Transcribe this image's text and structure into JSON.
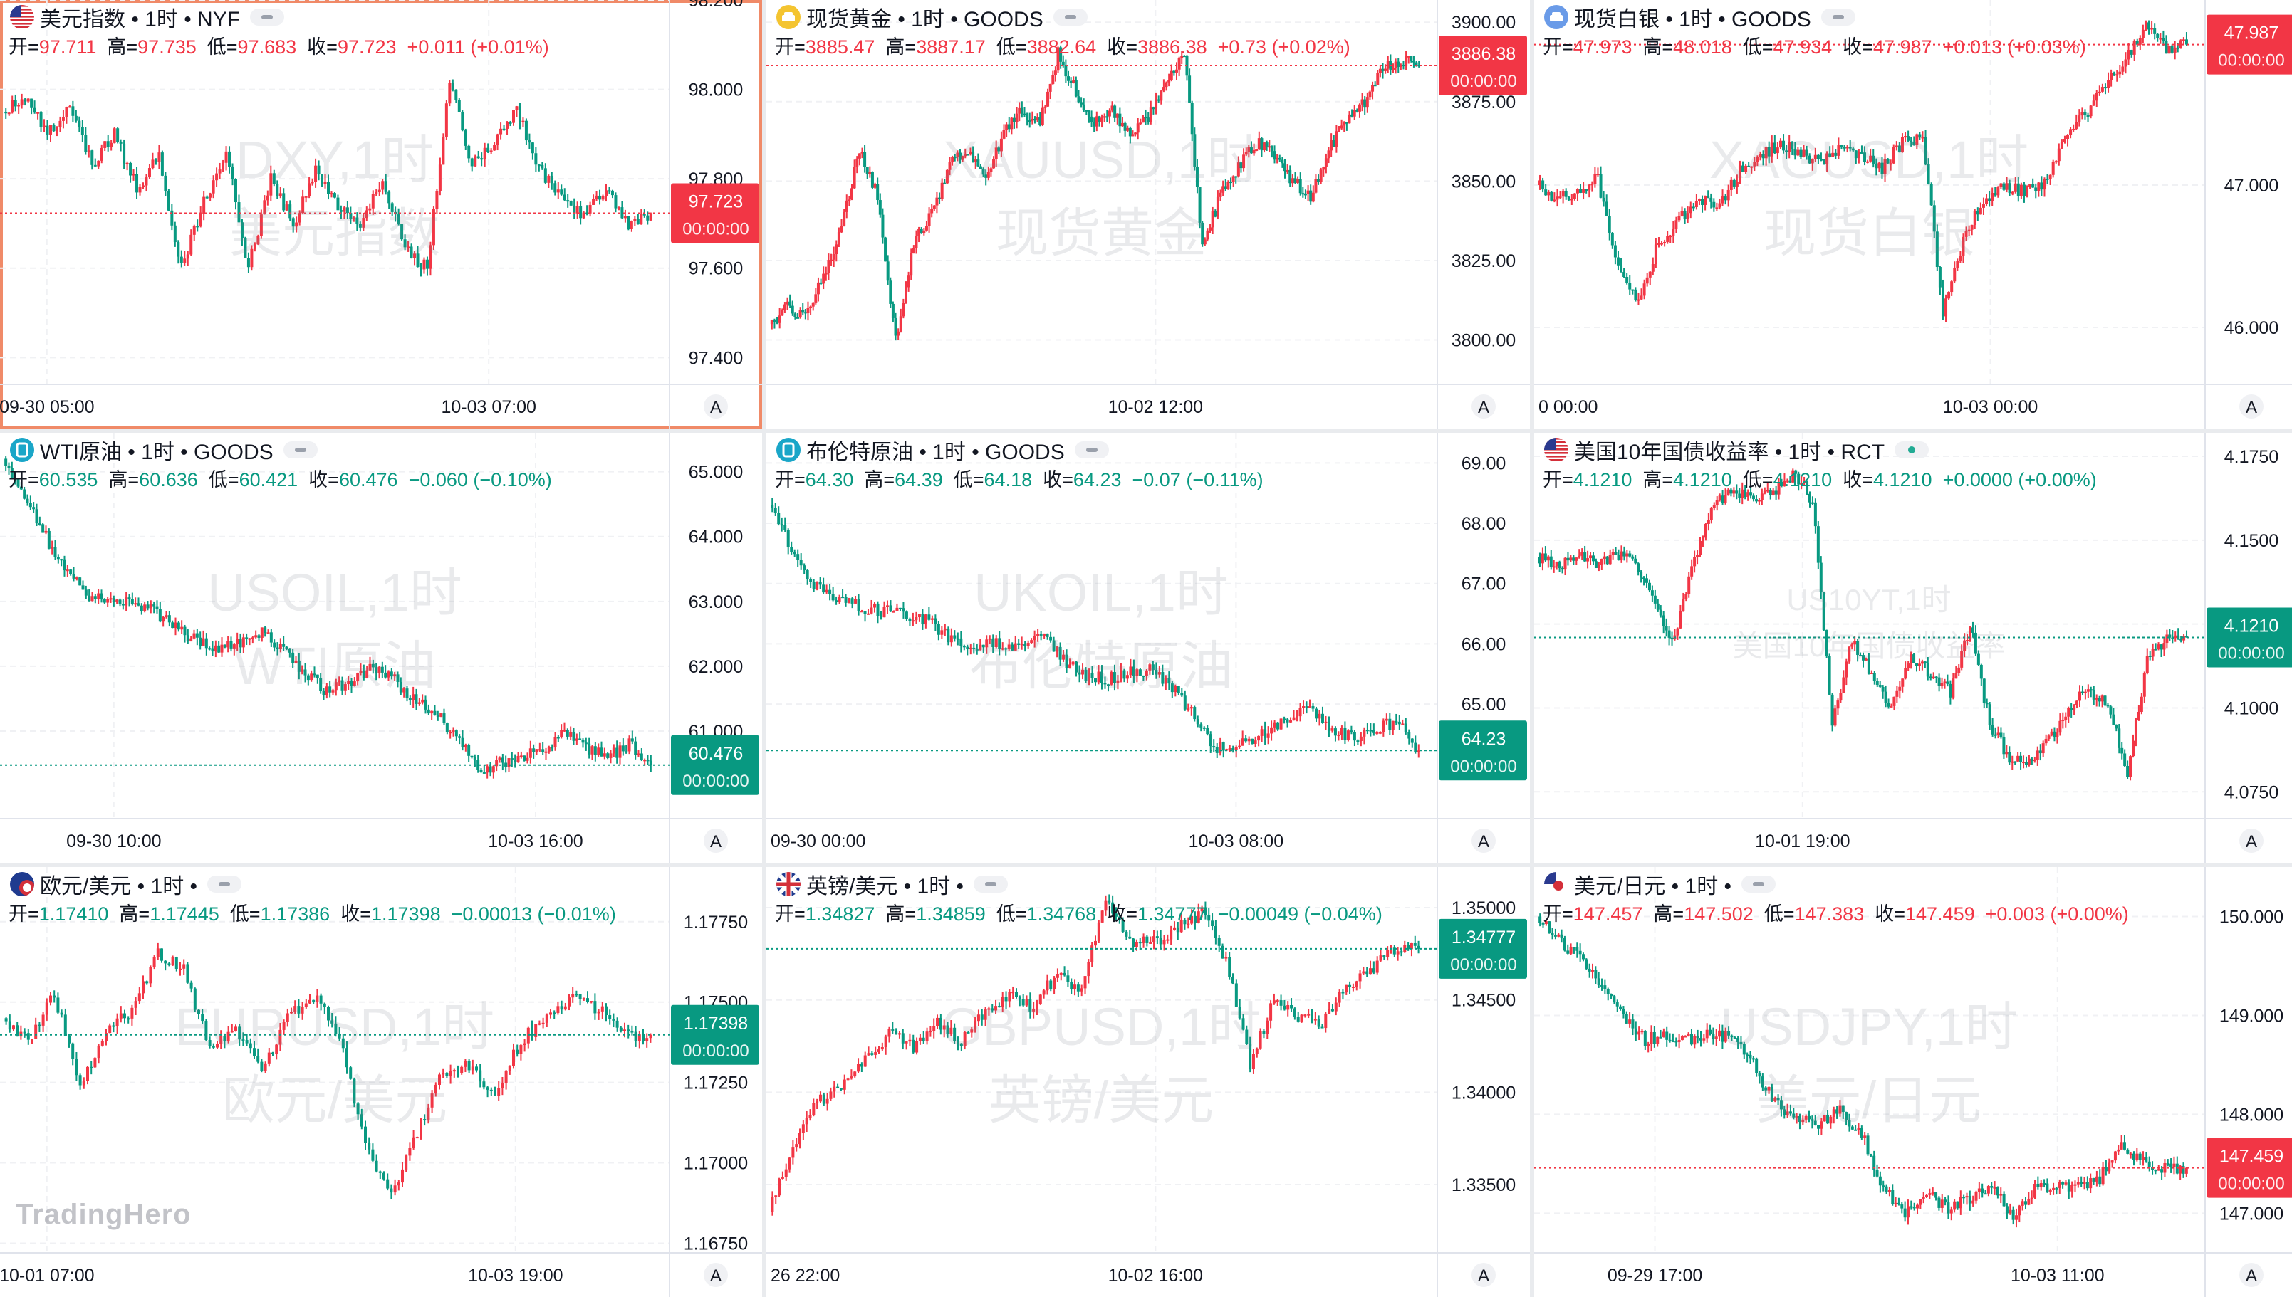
{
  "brand": "TradingHero",
  "colors": {
    "up": "#f23645",
    "down": "#089981",
    "text": "#131722",
    "muted": "#787b86"
  },
  "chart_data": [
    {
      "type": "candlestick",
      "id": "dxy",
      "flag": "us",
      "name": "美元指数",
      "interval": "1时",
      "exchange": "NYF",
      "watermark1": "DXY,1时",
      "watermark2": "美元指数",
      "labels": {
        "open": "开",
        "high": "高",
        "low": "低",
        "close": "收"
      },
      "ohlc": {
        "open": "97.711",
        "high": "97.735",
        "low": "97.683",
        "close": "97.723",
        "change": "+0.011",
        "change_pct": "(+0.01%)",
        "direction": "up"
      },
      "ylim": [
        97.34,
        98.2
      ],
      "y_ticks": [
        "98.200",
        "98.000",
        "97.800",
        "97.600",
        "97.400"
      ],
      "y_tick_values": [
        98.2,
        98.0,
        97.8,
        97.6,
        97.4
      ],
      "last_price": "97.723",
      "last_value": 97.723,
      "countdown": "00:00:00",
      "x_ticks": [
        {
          "label": "09-30 05:00",
          "pos": 0.07
        },
        {
          "label": "10-03 07:00",
          "pos": 0.73
        }
      ],
      "path": [
        97.95,
        97.98,
        97.9,
        97.96,
        97.83,
        97.9,
        97.78,
        97.85,
        97.6,
        97.75,
        97.86,
        97.6,
        97.8,
        97.7,
        97.82,
        97.74,
        97.7,
        97.8,
        97.64,
        97.6,
        98.02,
        97.83,
        97.88,
        97.96,
        97.82,
        97.76,
        97.72,
        97.77,
        97.7,
        97.723
      ],
      "active": true,
      "live": false
    },
    {
      "type": "candlestick",
      "id": "xauusd",
      "flag": "gold",
      "name": "现货黄金",
      "interval": "1时",
      "exchange": "GOODS",
      "watermark1": "XAUUSD,1时",
      "watermark2": "现货黄金",
      "labels": {
        "open": "开",
        "high": "高",
        "low": "低",
        "close": "收"
      },
      "ohlc": {
        "open": "3885.47",
        "high": "3887.17",
        "low": "3882.64",
        "close": "3886.38",
        "change": "+0.73",
        "change_pct": "(+0.02%)",
        "direction": "up"
      },
      "ylim": [
        3786,
        3907
      ],
      "y_ticks": [
        "3900.00",
        "3875.00",
        "3850.00",
        "3825.00",
        "3800.00"
      ],
      "y_tick_values": [
        3900,
        3875,
        3850,
        3825,
        3800
      ],
      "last_price": "3886.38",
      "last_value": 3886.38,
      "countdown": "00:00:00",
      "x_ticks": [
        {
          "label": "10-02 12:00",
          "pos": 0.58
        }
      ],
      "path": [
        3805,
        3810,
        3808,
        3820,
        3835,
        3860,
        3845,
        3800,
        3830,
        3840,
        3855,
        3860,
        3852,
        3865,
        3872,
        3868,
        3890,
        3878,
        3868,
        3872,
        3865,
        3870,
        3880,
        3890,
        3830,
        3845,
        3855,
        3862,
        3858,
        3850,
        3845,
        3860,
        3870,
        3875,
        3885,
        3888,
        3886.38
      ],
      "active": false,
      "live": false
    },
    {
      "type": "candlestick",
      "id": "xagusd",
      "flag": "silver",
      "name": "现货白银",
      "interval": "1时",
      "exchange": "GOODS",
      "watermark1": "XAGUSD,1时",
      "watermark2": "现货白银",
      "labels": {
        "open": "开",
        "high": "高",
        "low": "低",
        "close": "收"
      },
      "ohlc": {
        "open": "47.973",
        "high": "48.018",
        "low": "47.934",
        "close": "47.987",
        "change": "+0.013",
        "change_pct": "(+0.03%)",
        "direction": "up"
      },
      "ylim": [
        45.6,
        48.3
      ],
      "y_ticks": [
        "47.000",
        "46.000"
      ],
      "y_tick_values": [
        47.0,
        46.0
      ],
      "last_price": "47.987",
      "last_value": 47.987,
      "countdown": "00:00:00",
      "x_ticks": [
        {
          "label": "0 00:00",
          "pos": 0.0
        },
        {
          "label": "10-03 00:00",
          "pos": 0.68
        }
      ],
      "path": [
        47.0,
        46.9,
        46.95,
        47.05,
        46.4,
        46.2,
        46.6,
        46.75,
        46.9,
        46.85,
        47.1,
        47.2,
        47.3,
        47.22,
        47.15,
        47.25,
        47.2,
        47.12,
        47.3,
        47.35,
        46.1,
        46.6,
        46.9,
        47.0,
        46.95,
        47.0,
        47.3,
        47.5,
        47.7,
        47.9,
        48.1,
        47.95,
        47.987
      ],
      "active": false,
      "live": false
    },
    {
      "type": "candlestick",
      "id": "usoil",
      "flag": "oil",
      "name": "WTI原油",
      "interval": "1时",
      "exchange": "GOODS",
      "watermark1": "USOIL,1时",
      "watermark2": "WTI原油",
      "labels": {
        "open": "开",
        "high": "高",
        "low": "低",
        "close": "收"
      },
      "ohlc": {
        "open": "60.535",
        "high": "60.636",
        "low": "60.421",
        "close": "60.476",
        "change": "−0.060",
        "change_pct": "(−0.10%)",
        "direction": "down"
      },
      "ylim": [
        59.65,
        65.6
      ],
      "y_ticks": [
        "65.000",
        "64.000",
        "63.000",
        "62.000",
        "61.000"
      ],
      "y_tick_values": [
        65,
        64,
        63,
        62,
        61
      ],
      "last_price": "60.476",
      "last_value": 60.476,
      "countdown": "00:00:00",
      "x_ticks": [
        {
          "label": "09-30 10:00",
          "pos": 0.17
        },
        {
          "label": "10-03 16:00",
          "pos": 0.8
        }
      ],
      "path": [
        65.2,
        64.6,
        64.0,
        63.4,
        63.1,
        63.0,
        62.95,
        62.85,
        62.6,
        62.4,
        62.3,
        62.35,
        62.5,
        62.25,
        61.9,
        61.6,
        61.75,
        61.95,
        61.85,
        61.5,
        61.3,
        60.9,
        60.4,
        60.5,
        60.55,
        60.75,
        60.95,
        60.75,
        60.6,
        60.8,
        60.476
      ],
      "active": false,
      "live": false
    },
    {
      "type": "candlestick",
      "id": "ukoil",
      "flag": "oil",
      "name": "布伦特原油",
      "interval": "1时",
      "exchange": "GOODS",
      "watermark1": "UKOIL,1时",
      "watermark2": "布伦特原油",
      "labels": {
        "open": "开",
        "high": "高",
        "low": "低",
        "close": "收"
      },
      "ohlc": {
        "open": "64.30",
        "high": "64.39",
        "low": "64.18",
        "close": "64.23",
        "change": "−0.07",
        "change_pct": "(−0.11%)",
        "direction": "down"
      },
      "ylim": [
        63.1,
        69.5
      ],
      "y_ticks": [
        "69.00",
        "68.00",
        "67.00",
        "66.00",
        "65.00"
      ],
      "y_tick_values": [
        69,
        68,
        67,
        66,
        65
      ],
      "last_price": "64.23",
      "last_value": 64.23,
      "countdown": "00:00:00",
      "x_ticks": [
        {
          "label": "09-30 00:00",
          "pos": 0.02
        },
        {
          "label": "10-03 08:00",
          "pos": 0.7
        }
      ],
      "path": [
        68.3,
        67.6,
        67.0,
        66.8,
        66.6,
        66.55,
        66.5,
        66.4,
        66.1,
        65.9,
        66.0,
        65.95,
        66.2,
        65.8,
        65.5,
        65.4,
        65.5,
        65.6,
        65.3,
        64.8,
        64.25,
        64.35,
        64.5,
        64.7,
        64.95,
        64.6,
        64.45,
        64.6,
        64.7,
        64.23
      ],
      "active": false,
      "live": false
    },
    {
      "type": "candlestick",
      "id": "us10y",
      "flag": "us",
      "name": "美国10年国债收益率",
      "interval": "1时",
      "exchange": "RCT",
      "watermark1": "US10YT,1时",
      "watermark2": "美国10年国债收益率",
      "labels": {
        "open": "开",
        "high": "高",
        "low": "低",
        "close": "收"
      },
      "ohlc": {
        "open": "4.1210",
        "high": "4.1210",
        "low": "4.1210",
        "close": "4.1210",
        "change": "+0.0000",
        "change_pct": "(+0.00%)",
        "direction": "down"
      },
      "ylim": [
        4.067,
        4.182
      ],
      "y_ticks": [
        "4.1750",
        "4.1500",
        "4.1250",
        "4.1000",
        "4.0750"
      ],
      "y_tick_values": [
        4.175,
        4.15,
        4.125,
        4.1,
        4.075
      ],
      "last_price": "4.1210",
      "last_value": 4.121,
      "countdown": "00:00:00",
      "x_ticks": [
        {
          "label": "10-01 19:00",
          "pos": 0.4
        }
      ],
      "path": [
        4.145,
        4.142,
        4.146,
        4.143,
        4.146,
        4.144,
        4.13,
        4.12,
        4.145,
        4.16,
        4.165,
        4.163,
        4.164,
        4.17,
        4.162,
        4.095,
        4.12,
        4.11,
        4.1,
        4.115,
        4.11,
        4.105,
        4.125,
        4.095,
        4.085,
        4.085,
        4.09,
        4.1,
        4.105,
        4.102,
        4.08,
        4.115,
        4.121,
        4.121
      ],
      "active": false,
      "live": true
    },
    {
      "type": "candlestick",
      "id": "eurusd",
      "flag": "eu",
      "name": "欧元/美元",
      "interval": "1时",
      "exchange": "",
      "watermark1": "EURUSD,1时",
      "watermark2": "欧元/美元",
      "labels": {
        "open": "开",
        "high": "高",
        "low": "低",
        "close": "收"
      },
      "ohlc": {
        "open": "1.17410",
        "high": "1.17445",
        "low": "1.17386",
        "close": "1.17398",
        "change": "−0.00013",
        "change_pct": "(−0.01%)",
        "direction": "down"
      },
      "ylim": [
        1.1672,
        1.1792
      ],
      "y_ticks": [
        "1.17750",
        "1.17500",
        "1.17250",
        "1.17000",
        "1.16750"
      ],
      "y_tick_values": [
        1.1775,
        1.175,
        1.1725,
        1.17,
        1.1675
      ],
      "last_price": "1.17398",
      "last_value": 1.17398,
      "countdown": "00:00:00",
      "x_ticks": [
        {
          "label": "10-01 07:00",
          "pos": 0.07
        },
        {
          "label": "10-03 19:00",
          "pos": 0.77
        }
      ],
      "path": [
        1.1745,
        1.1738,
        1.1752,
        1.1725,
        1.174,
        1.1748,
        1.1765,
        1.176,
        1.1735,
        1.1742,
        1.1728,
        1.1745,
        1.1752,
        1.174,
        1.1705,
        1.169,
        1.171,
        1.1728,
        1.173,
        1.1722,
        1.1738,
        1.1745,
        1.1752,
        1.1748,
        1.174,
        1.17398
      ],
      "active": false,
      "live": false
    },
    {
      "type": "candlestick",
      "id": "gbpusd",
      "flag": "uk",
      "name": "英镑/美元",
      "interval": "1时",
      "exchange": "",
      "watermark1": "GBPUSD,1时",
      "watermark2": "英镑/美元",
      "labels": {
        "open": "开",
        "high": "高",
        "low": "低",
        "close": "收"
      },
      "ohlc": {
        "open": "1.34827",
        "high": "1.34859",
        "low": "1.34768",
        "close": "1.34777",
        "change": "−0.00049",
        "change_pct": "(−0.04%)",
        "direction": "down"
      },
      "ylim": [
        1.3313,
        1.3522
      ],
      "y_ticks": [
        "1.35000",
        "1.34500",
        "1.34000",
        "1.33500"
      ],
      "y_tick_values": [
        1.35,
        1.345,
        1.34,
        1.335
      ],
      "last_price": "1.34777",
      "last_value": 1.34777,
      "countdown": "00:00:00",
      "x_ticks": [
        {
          "label": "26 22:00",
          "pos": 0.0
        },
        {
          "label": "10-02 16:00",
          "pos": 0.58
        }
      ],
      "path": [
        1.3335,
        1.3372,
        1.3395,
        1.3402,
        1.3418,
        1.3432,
        1.3425,
        1.3437,
        1.3428,
        1.3445,
        1.3452,
        1.3446,
        1.3465,
        1.3455,
        1.3505,
        1.348,
        1.3482,
        1.3488,
        1.3498,
        1.3472,
        1.3415,
        1.345,
        1.3442,
        1.3438,
        1.3458,
        1.3465,
        1.3478,
        1.34777
      ],
      "active": false,
      "live": false
    },
    {
      "type": "candlestick",
      "id": "usdjpy",
      "flag": "jp",
      "name": "美元/日元",
      "interval": "1时",
      "exchange": "",
      "watermark1": "USDJPY,1时",
      "watermark2": "美元/日元",
      "labels": {
        "open": "开",
        "high": "高",
        "low": "低",
        "close": "收"
      },
      "ohlc": {
        "open": "147.457",
        "high": "147.502",
        "low": "147.383",
        "close": "147.459",
        "change": "+0.003",
        "change_pct": "(+0.00%)",
        "direction": "up"
      },
      "ylim": [
        146.6,
        150.5
      ],
      "y_ticks": [
        "150.000",
        "149.000",
        "148.000",
        "147.000"
      ],
      "y_tick_values": [
        150,
        149,
        148,
        147
      ],
      "last_price": "147.459",
      "last_value": 147.459,
      "countdown": "00:00:00",
      "x_ticks": [
        {
          "label": "09-29 17:00",
          "pos": 0.18
        },
        {
          "label": "10-03 11:00",
          "pos": 0.78
        }
      ],
      "path": [
        150.0,
        149.75,
        149.6,
        149.3,
        148.95,
        148.75,
        148.8,
        148.75,
        148.82,
        148.78,
        148.5,
        148.1,
        147.95,
        147.9,
        148.05,
        147.8,
        147.25,
        147.0,
        147.2,
        147.05,
        147.15,
        147.3,
        146.95,
        147.25,
        147.3,
        147.25,
        147.35,
        147.7,
        147.5,
        147.45,
        147.459
      ],
      "active": false,
      "live": false
    }
  ]
}
